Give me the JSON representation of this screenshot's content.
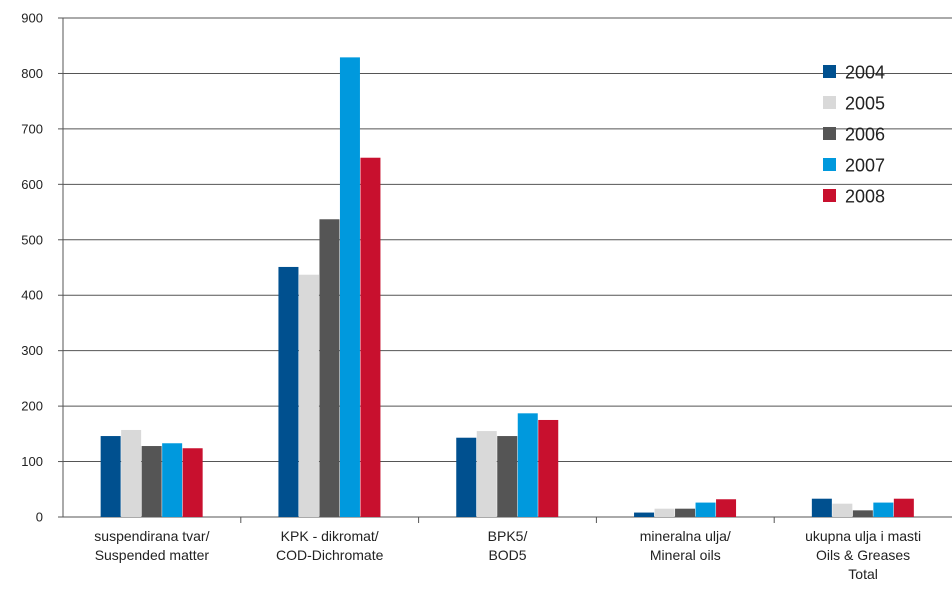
{
  "chart_data": {
    "type": "bar",
    "title": "",
    "xlabel": "",
    "ylabel": "",
    "ylim": [
      0,
      900
    ],
    "yticks": [
      0,
      100,
      200,
      300,
      400,
      500,
      600,
      700,
      800,
      900
    ],
    "grid": true,
    "legend_position": "right",
    "categories": [
      [
        "suspendirana tvar/",
        "Suspended matter"
      ],
      [
        "KPK - dikromat/",
        "COD-Dichromate"
      ],
      [
        "BPK5/",
        "BOD5"
      ],
      [
        "mineralna ulja/",
        "Mineral oils"
      ],
      [
        "ukupna ulja i masti",
        "Oils & Greases",
        "Total"
      ]
    ],
    "series": [
      {
        "name": "2004",
        "color": "#00508f",
        "values": [
          146,
          451,
          143,
          8,
          33
        ]
      },
      {
        "name": "2005",
        "color": "#d9d9d9",
        "values": [
          157,
          437,
          155,
          15,
          24
        ]
      },
      {
        "name": "2006",
        "color": "#555555",
        "values": [
          128,
          537,
          146,
          15,
          12
        ]
      },
      {
        "name": "2007",
        "color": "#0099dd",
        "values": [
          133,
          829,
          187,
          26,
          26
        ]
      },
      {
        "name": "2008",
        "color": "#c8102e",
        "values": [
          124,
          648,
          175,
          32,
          33
        ]
      }
    ]
  }
}
